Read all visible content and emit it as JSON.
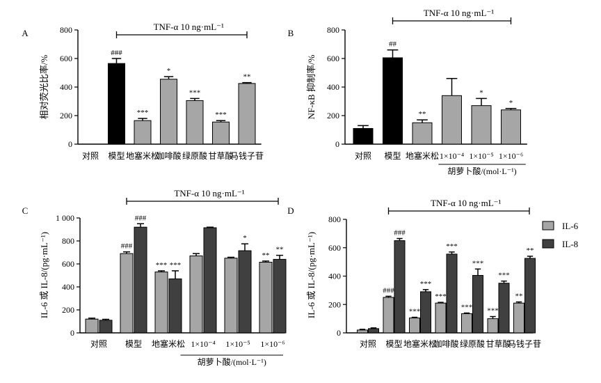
{
  "chart_data": [
    {
      "panel": "A",
      "type": "bar",
      "ylabel": "相对荧光比率/%",
      "ylim": [
        0,
        800
      ],
      "yticks": [
        "0",
        "200",
        "400",
        "600",
        "800"
      ],
      "categories": [
        "对照",
        "模型",
        "地塞米松",
        "咖啡酸",
        "绿原酸",
        "甘草酸",
        "马钱子苷"
      ],
      "series": [
        {
          "values": [
            0,
            565,
            165,
            455,
            305,
            155,
            425
          ],
          "errors": [
            0,
            35,
            15,
            18,
            15,
            10,
            6
          ],
          "colors": [
            "#a6a6a6",
            "#000000",
            "#a6a6a6",
            "#a6a6a6",
            "#a6a6a6",
            "#a6a6a6",
            "#a6a6a6"
          ],
          "marks": [
            "",
            "###",
            "***",
            "*",
            "***",
            "***",
            "**"
          ]
        }
      ],
      "bracket": {
        "label": "TNF-α 10 ng·mL⁻¹",
        "from": 1,
        "to": 6
      }
    },
    {
      "panel": "B",
      "type": "bar",
      "ylabel": "NF-κB 抑制率/%",
      "ylim": [
        0,
        800
      ],
      "yticks": [
        "0",
        "200",
        "400",
        "600",
        "800"
      ],
      "categories": [
        "对照",
        "模型",
        "地塞米松",
        "1×10⁻⁴",
        "1×10⁻⁵",
        "1×10⁻⁶"
      ],
      "series": [
        {
          "values": [
            110,
            605,
            150,
            340,
            270,
            240
          ],
          "errors": [
            20,
            55,
            20,
            120,
            50,
            10
          ],
          "colors": [
            "#000000",
            "#000000",
            "#a6a6a6",
            "#a6a6a6",
            "#a6a6a6",
            "#a6a6a6"
          ],
          "marks": [
            "",
            "##",
            "**",
            "",
            "*",
            "*"
          ]
        }
      ],
      "bracket": {
        "label": "TNF-α 10 ng·mL⁻¹",
        "from": 1,
        "to": 5
      },
      "group_label": {
        "label": "胡萝卜酸/(mol·L⁻¹)",
        "from": 3,
        "to": 5
      }
    },
    {
      "panel": "C",
      "type": "bar",
      "ylabel": "IL-6 或 IL-8/(pg·mL⁻¹)",
      "ylim": [
        0,
        1000
      ],
      "yticks": [
        "0",
        "200",
        "400",
        "600",
        "800",
        "1 000"
      ],
      "categories": [
        "对照",
        "模型",
        "地塞米松",
        "1×10⁻⁴",
        "1×10⁻⁵",
        "1×10⁻⁶"
      ],
      "series": [
        {
          "name": "IL-6",
          "values": [
            120,
            690,
            530,
            670,
            650,
            615
          ],
          "errors": [
            8,
            15,
            10,
            20,
            8,
            10
          ],
          "marks": [
            "",
            "###",
            "***",
            "",
            "",
            "**"
          ]
        },
        {
          "name": "IL-8",
          "values": [
            110,
            920,
            470,
            915,
            715,
            640
          ],
          "errors": [
            8,
            30,
            70,
            5,
            60,
            35
          ],
          "marks": [
            "",
            "###",
            "***",
            "",
            "*",
            "**"
          ]
        }
      ],
      "bracket": {
        "label": "TNF-α 10 ng·mL⁻¹",
        "from": 1,
        "to": 5
      },
      "group_label": {
        "label": "胡萝卜酸/(mol·L⁻¹)",
        "from": 3,
        "to": 5
      }
    },
    {
      "panel": "D",
      "type": "bar",
      "ylabel": "IL-6 或 IL-8/(pg·mL⁻¹)",
      "ylim": [
        0,
        800
      ],
      "yticks": [
        "0",
        "200",
        "400",
        "600",
        "800"
      ],
      "categories": [
        "对照",
        "模型",
        "地塞米松",
        "咖啡酸",
        "绿原酸",
        "甘草酸",
        "马钱子苷"
      ],
      "series": [
        {
          "name": "IL-6",
          "values": [
            20,
            250,
            105,
            210,
            135,
            100,
            210
          ],
          "errors": [
            5,
            8,
            5,
            5,
            5,
            15,
            8
          ],
          "marks": [
            "",
            "###",
            "***",
            "***",
            "***",
            "***",
            "**"
          ]
        },
        {
          "name": "IL-8",
          "values": [
            30,
            650,
            290,
            555,
            405,
            350,
            525
          ],
          "errors": [
            5,
            15,
            15,
            15,
            45,
            15,
            15
          ],
          "marks": [
            "",
            "###",
            "***",
            "***",
            "***",
            "***",
            "**"
          ]
        }
      ],
      "bracket": {
        "label": "TNF-α 10 ng·mL⁻¹",
        "from": 1,
        "to": 6
      },
      "legend": {
        "position": "top-right",
        "entries": [
          "IL-6",
          "IL-8"
        ]
      }
    }
  ],
  "colors": {
    "IL-6": "#a6a6a6",
    "IL-8": "#404040",
    "model": "#000000",
    "treatment": "#a6a6a6"
  }
}
